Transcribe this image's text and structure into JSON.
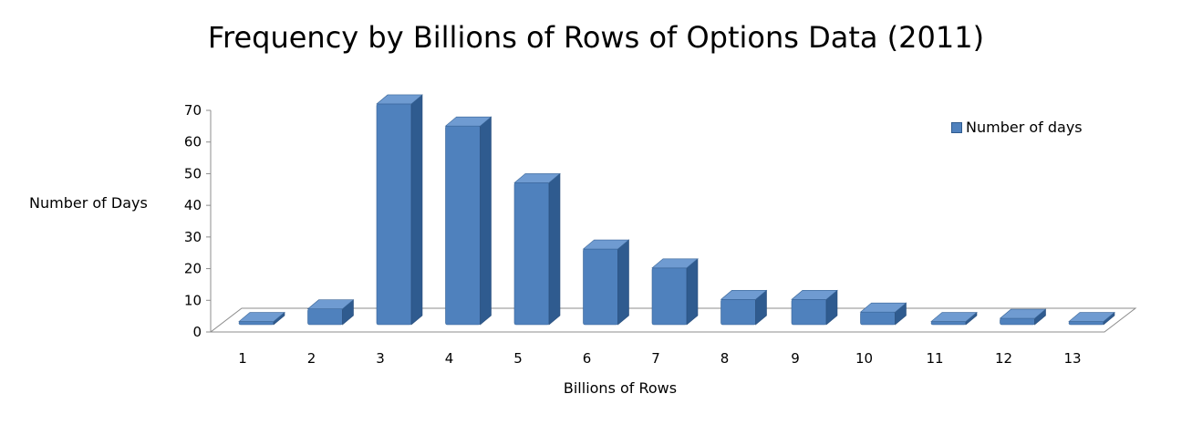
{
  "chart_data": {
    "type": "bar",
    "title": "Frequency by Billions of Rows of Options Data (2011)",
    "xlabel": "Billions of Rows",
    "ylabel": "Number of Days",
    "categories": [
      "1",
      "2",
      "3",
      "4",
      "5",
      "6",
      "7",
      "8",
      "9",
      "10",
      "11",
      "12",
      "13"
    ],
    "series": [
      {
        "name": "Number of days",
        "values": [
          1,
          5,
          70,
          63,
          45,
          24,
          18,
          8,
          8,
          4,
          1,
          2,
          1
        ]
      }
    ],
    "ylim": [
      0,
      70
    ],
    "yticks": [
      0,
      10,
      20,
      30,
      40,
      50,
      60,
      70
    ],
    "grid": false,
    "legend_position": "top-right",
    "colors": {
      "bar_front": "#4f81bd",
      "bar_side": "#2f5b8f",
      "bar_top": "#6f9bd1"
    }
  }
}
